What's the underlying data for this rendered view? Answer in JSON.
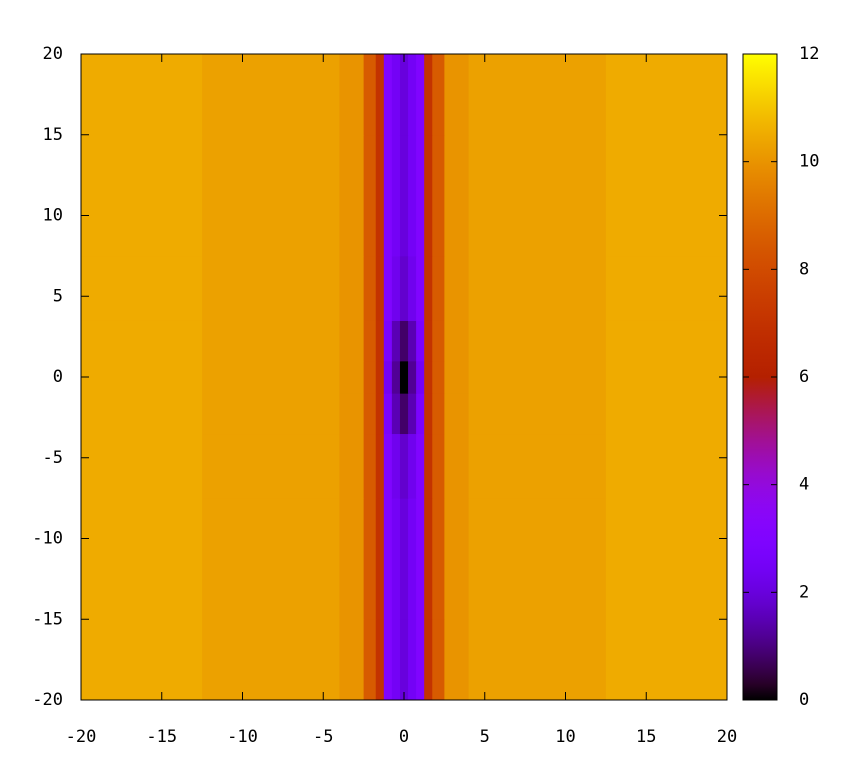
{
  "chart_data": {
    "type": "heatmap",
    "x": [
      -20,
      -5,
      -3,
      -2,
      -1.5,
      -1,
      -0.5,
      0,
      0.5,
      1,
      1.5,
      2,
      3,
      5,
      20
    ],
    "y": [
      -20,
      -10,
      -5,
      -2,
      0,
      2,
      5,
      10,
      20
    ],
    "z": [
      [
        10.5,
        10.3,
        10,
        8.5,
        7,
        3,
        2.5,
        2,
        2.5,
        3,
        7,
        8.5,
        10,
        10.3,
        10.5
      ],
      [
        10.5,
        10.3,
        10,
        8.5,
        7,
        3,
        2.5,
        2,
        2.5,
        3,
        7,
        8.5,
        10,
        10.3,
        10.5
      ],
      [
        10.5,
        10.3,
        10,
        8.5,
        7,
        3,
        2.3,
        1.8,
        2.3,
        3,
        7,
        8.5,
        10,
        10.3,
        10.5
      ],
      [
        10.5,
        10.3,
        10,
        8.5,
        7,
        2.8,
        1.5,
        0.8,
        1.5,
        2.8,
        7,
        8.5,
        10,
        10.3,
        10.5
      ],
      [
        10.5,
        10.3,
        10,
        8.5,
        7,
        2.5,
        1.2,
        0,
        1.2,
        2.5,
        7,
        8.5,
        10,
        10.3,
        10.5
      ],
      [
        10.5,
        10.3,
        10,
        8.5,
        7,
        2.8,
        1.5,
        0.8,
        1.5,
        2.8,
        7,
        8.5,
        10,
        10.3,
        10.5
      ],
      [
        10.5,
        10.3,
        10,
        8.5,
        7,
        3,
        2.3,
        1.8,
        2.3,
        3,
        7,
        8.5,
        10,
        10.3,
        10.5
      ],
      [
        10.5,
        10.3,
        10,
        8.5,
        7,
        3,
        2.5,
        2,
        2.5,
        3,
        7,
        8.5,
        10,
        10.3,
        10.5
      ],
      [
        10.5,
        10.3,
        10,
        8.5,
        7,
        3,
        2.5,
        2,
        2.5,
        3,
        7,
        8.5,
        10,
        10.3,
        10.5
      ]
    ],
    "xlim": [
      -20,
      20
    ],
    "xticks": [
      -20,
      -15,
      -10,
      -5,
      0,
      5,
      10,
      15,
      20
    ],
    "ylim": [
      -20,
      20
    ],
    "yticks": [
      -20,
      -15,
      -10,
      -5,
      0,
      5,
      10,
      15,
      20
    ],
    "cblim": [
      0,
      12
    ],
    "cbticks": [
      0,
      2,
      4,
      6,
      8,
      10,
      12
    ],
    "palette": "rgbformulae-7-5-15"
  }
}
